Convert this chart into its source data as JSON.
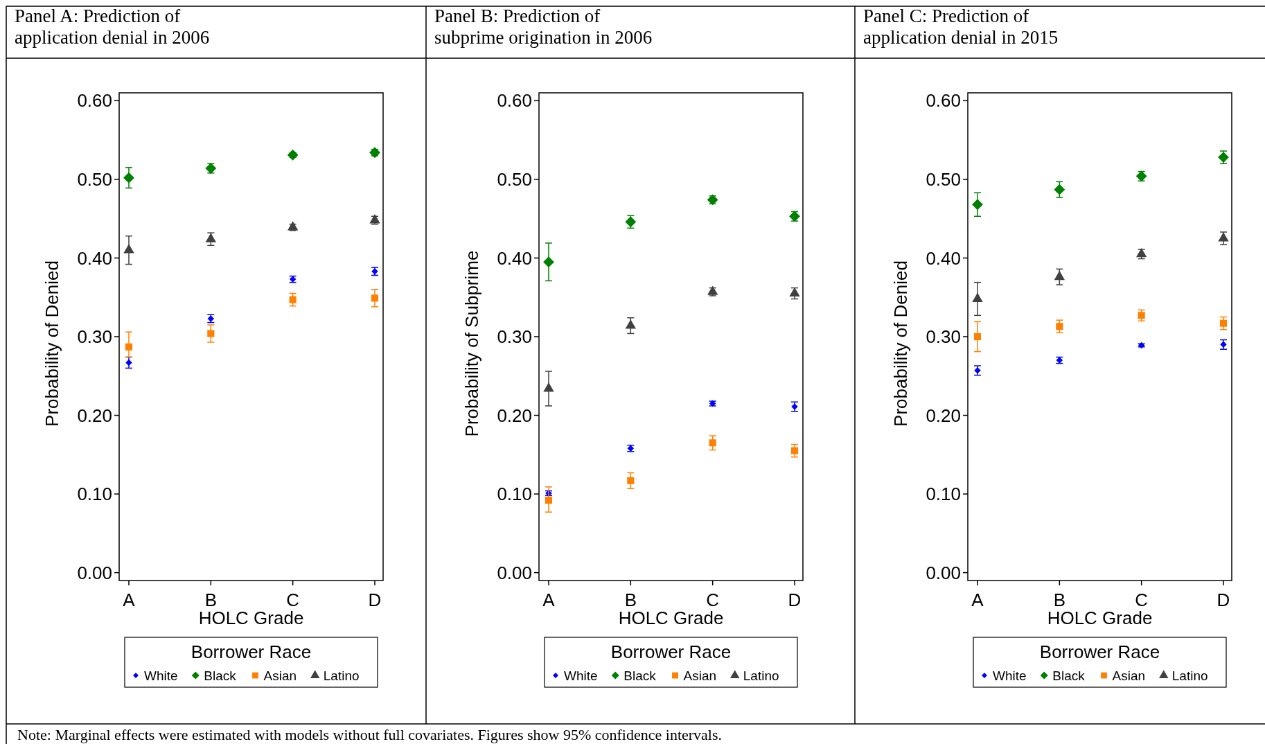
{
  "chart_data": [
    {
      "type": "scatter",
      "title": "Panel A: Prediction of\napplication denial in 2006",
      "xlabel": "HOLC Grade",
      "ylabel": "Probability of Denied",
      "categories": [
        "A",
        "B",
        "C",
        "D"
      ],
      "ylim": [
        -0.01,
        0.61
      ],
      "yticks": [
        {
          "value": 0,
          "label": "0.00"
        },
        {
          "value": 0.1,
          "label": "0.10"
        },
        {
          "value": 0.2,
          "label": "0.20"
        },
        {
          "value": 0.3,
          "label": "0.30"
        },
        {
          "value": 0.4,
          "label": "0.40"
        },
        {
          "value": 0.5,
          "label": "0.50"
        },
        {
          "value": 0.6,
          "label": "0.60"
        }
      ],
      "grid": false,
      "legend": "bottom",
      "legend_title": "Borrower Race",
      "annotations": [
        "Note: Marginal effects were estimated with models without full covariates. Figures show 95% confidence intervals."
      ],
      "series": [
        {
          "name": "White",
          "color": "#0000ff",
          "marker": "diamond",
          "values": [
            0.267,
            0.323,
            0.373,
            0.383
          ],
          "errors": [
            0.007,
            0.005,
            0.004,
            0.005
          ]
        },
        {
          "name": "Black",
          "color": "#008000",
          "marker": "diamond",
          "values": [
            0.502,
            0.514,
            0.531,
            0.534
          ],
          "errors": [
            0.013,
            0.006,
            0.003,
            0.004
          ]
        },
        {
          "name": "Asian",
          "color": "#ff8000",
          "marker": "square",
          "values": [
            0.287,
            0.304,
            0.347,
            0.349
          ],
          "errors": [
            [
              0.274,
              0.306
            ],
            0.011,
            0.008,
            0.011
          ]
        },
        {
          "name": "Latino",
          "color": "#404040",
          "marker": "triangle",
          "values": [
            0.41,
            0.424,
            0.439,
            0.448
          ],
          "errors": [
            0.018,
            0.008,
            0.004,
            0.005
          ]
        }
      ]
    },
    {
      "type": "scatter",
      "title": "Panel B: Prediction of\nsubprime origination in 2006",
      "xlabel": "HOLC Grade",
      "ylabel": "Probability of Subprime",
      "categories": [
        "A",
        "B",
        "C",
        "D"
      ],
      "ylim": [
        -0.01,
        0.61
      ],
      "yticks": [
        {
          "value": 0,
          "label": "0.00"
        },
        {
          "value": 0.1,
          "label": "0.10"
        },
        {
          "value": 0.2,
          "label": "0.20"
        },
        {
          "value": 0.3,
          "label": "0.30"
        },
        {
          "value": 0.4,
          "label": "0.40"
        },
        {
          "value": 0.5,
          "label": "0.50"
        },
        {
          "value": 0.6,
          "label": "0.60"
        }
      ],
      "grid": false,
      "legend": "bottom",
      "legend_title": "Borrower Race",
      "series": [
        {
          "name": "White",
          "color": "#0000ff",
          "marker": "diamond",
          "values": [
            0.101,
            0.158,
            0.215,
            0.211
          ],
          "errors": [
            0.003,
            0.004,
            0.003,
            0.006
          ]
        },
        {
          "name": "Black",
          "color": "#008000",
          "marker": "diamond",
          "values": [
            0.395,
            0.446,
            0.474,
            0.453
          ],
          "errors": [
            0.024,
            0.008,
            0.005,
            0.006
          ]
        },
        {
          "name": "Asian",
          "color": "#ff8000",
          "marker": "square",
          "values": [
            0.092,
            0.117,
            0.165,
            0.155
          ],
          "errors": [
            [
              0.077,
              0.109
            ],
            0.01,
            0.009,
            0.008
          ]
        },
        {
          "name": "Latino",
          "color": "#404040",
          "marker": "triangle",
          "values": [
            0.234,
            0.314,
            0.357,
            0.355
          ],
          "errors": [
            0.022,
            0.01,
            0.005,
            0.007
          ]
        }
      ]
    },
    {
      "type": "scatter",
      "title": "Panel C: Prediction of\napplication denial in 2015",
      "xlabel": "HOLC Grade",
      "ylabel": "Probability of Denied",
      "categories": [
        "A",
        "B",
        "C",
        "D"
      ],
      "ylim": [
        -0.01,
        0.61
      ],
      "yticks": [
        {
          "value": 0,
          "label": "0.00"
        },
        {
          "value": 0.1,
          "label": "0.10"
        },
        {
          "value": 0.2,
          "label": "0.20"
        },
        {
          "value": 0.3,
          "label": "0.30"
        },
        {
          "value": 0.4,
          "label": "0.40"
        },
        {
          "value": 0.5,
          "label": "0.50"
        },
        {
          "value": 0.6,
          "label": "0.60"
        }
      ],
      "grid": false,
      "legend": "bottom",
      "legend_title": "Borrower Race",
      "series": [
        {
          "name": "White",
          "color": "#0000ff",
          "marker": "diamond",
          "values": [
            0.257,
            0.27,
            0.289,
            0.29
          ],
          "errors": [
            0.006,
            0.004,
            0.002,
            0.006
          ]
        },
        {
          "name": "Black",
          "color": "#008000",
          "marker": "diamond",
          "values": [
            0.468,
            0.487,
            0.504,
            0.528
          ],
          "errors": [
            0.015,
            0.01,
            0.006,
            0.008
          ]
        },
        {
          "name": "Asian",
          "color": "#ff8000",
          "marker": "square",
          "values": [
            0.3,
            0.313,
            0.327,
            0.317
          ],
          "errors": [
            0.019,
            0.008,
            0.007,
            0.008
          ]
        },
        {
          "name": "Latino",
          "color": "#404040",
          "marker": "triangle",
          "values": [
            0.348,
            0.376,
            0.405,
            0.425
          ],
          "errors": [
            0.021,
            0.01,
            0.006,
            0.008
          ]
        }
      ]
    }
  ]
}
